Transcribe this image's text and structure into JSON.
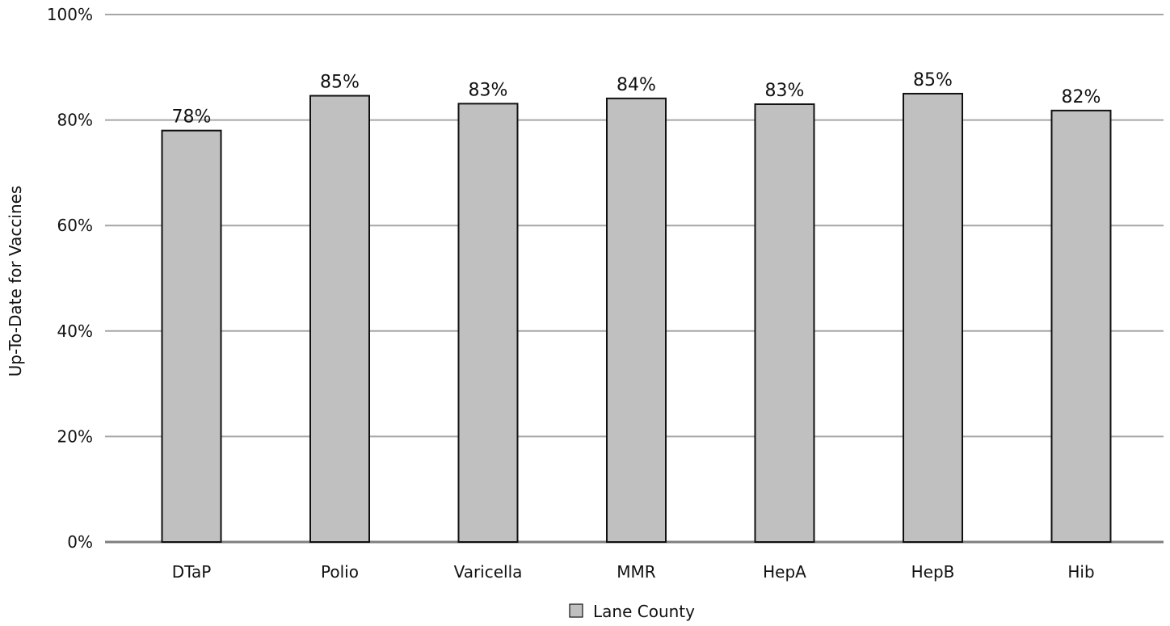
{
  "chart_data": {
    "type": "bar",
    "categories": [
      "DTaP",
      "Polio",
      "Varicella",
      "MMR",
      "HepA",
      "HepB",
      "Hib"
    ],
    "series": [
      {
        "name": "Lane County",
        "values": [
          78,
          84.6,
          83.1,
          84.1,
          83,
          85,
          81.8
        ],
        "labels": [
          "78%",
          "85%",
          "83%",
          "84%",
          "83%",
          "85%",
          "82%"
        ]
      }
    ],
    "ylabel": "Up-To-Date for Vaccines",
    "xlabel": "",
    "ylim": [
      0,
      100
    ],
    "yticks": [
      "0%",
      "20%",
      "40%",
      "60%",
      "80%",
      "100%"
    ],
    "grid": true,
    "legend_position": "bottom",
    "colors": {
      "bar_fill": "#c0c0c0",
      "bar_stroke": "#111111",
      "grid": "#a6a6a6",
      "axis": "#7f7f7f"
    }
  }
}
